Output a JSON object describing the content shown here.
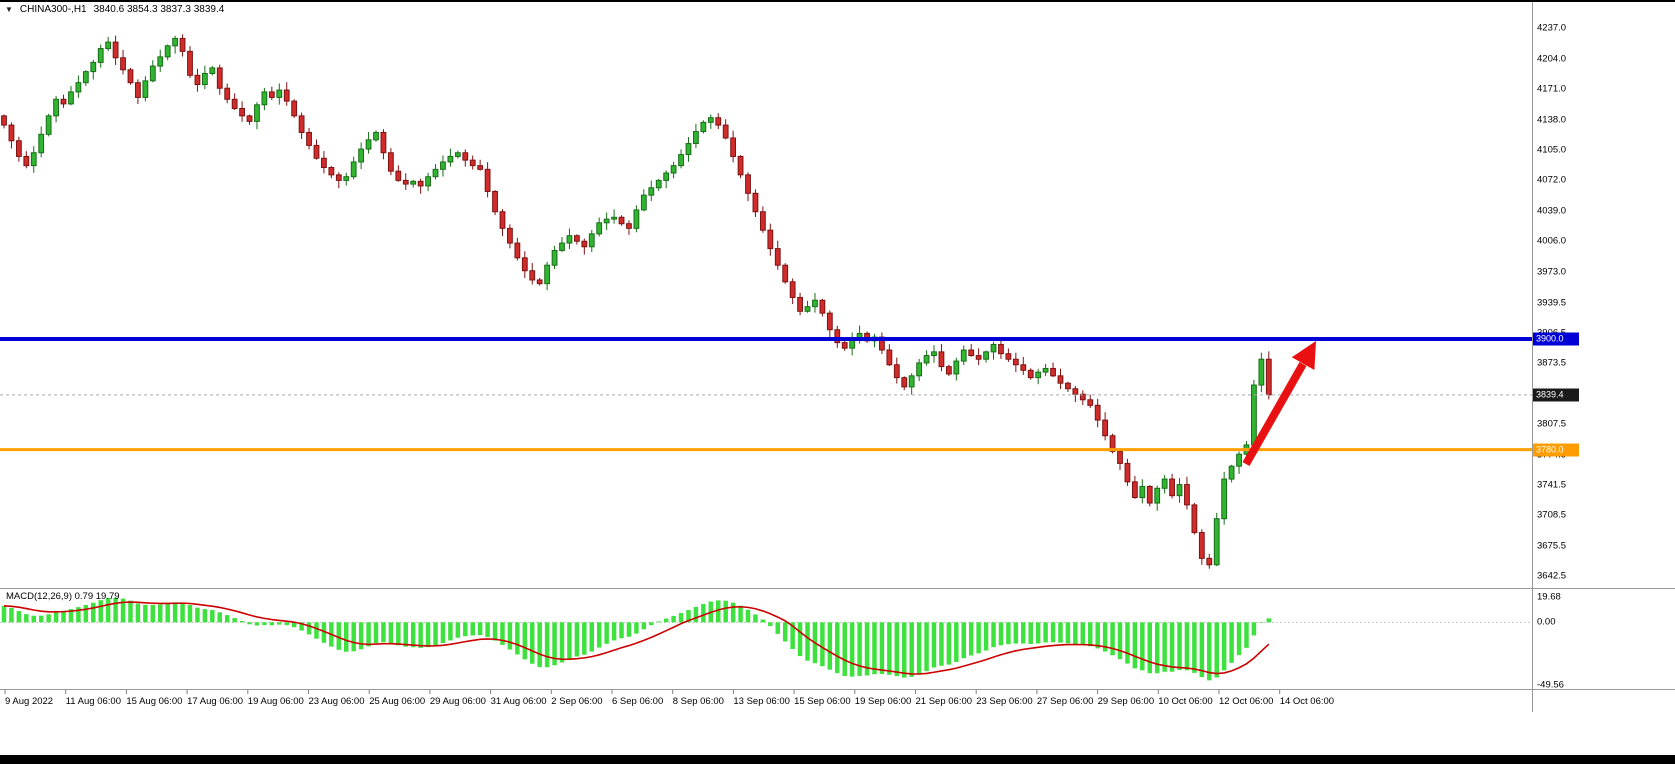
{
  "window": {
    "background": "#ffffff"
  },
  "header": {
    "dropdown_icon": "▼",
    "symbol_title": "CHINA300-,H1",
    "ohlc": "3840.6 3854.3 3837.3 3839.4"
  },
  "price_tags": {
    "blue": "3900.0",
    "black": "3839.4",
    "orange": "3780.0"
  },
  "colors": {
    "candle_up": "#31b431",
    "candle_up_stroke": "#176e17",
    "candle_down": "#d02c2c",
    "candle_down_stroke": "#7e1212",
    "macd_hist": "#3ee23e",
    "macd_signal": "#cc0000",
    "hline_blue": "#0000d6",
    "hline_orange": "#ffa000",
    "last_price_line": "#aaaaaa",
    "arrow": "#e81010"
  },
  "chart_data": {
    "type": "candlestick",
    "symbol": "CHINA300-",
    "timeframe": "H1",
    "title": "CHINA300-,H1",
    "ohlc_readout": {
      "open": 3840.6,
      "high": 3854.3,
      "low": 3837.3,
      "close": 3839.4
    },
    "price_axis_range": [
      3632,
      4246
    ],
    "price_axis_labels": [
      "4237.0",
      "4204.0",
      "4171.0",
      "4138.0",
      "4105.0",
      "4072.0",
      "4039.0",
      "4006.0",
      "3973.0",
      "3939.5",
      "3906.5",
      "3873.5",
      "3840.5",
      "3807.5",
      "3774.5",
      "3741.5",
      "3708.5",
      "3675.5",
      "3642.5"
    ],
    "time_axis_labels": [
      "9 Aug 2022",
      "11 Aug 06:00",
      "15 Aug 06:00",
      "17 Aug 06:00",
      "19 Aug 06:00",
      "23 Aug 06:00",
      "25 Aug 06:00",
      "29 Aug 06:00",
      "31 Aug 06:00",
      "2 Sep 06:00",
      "6 Sep 06:00",
      "8 Sep 06:00",
      "13 Sep 06:00",
      "15 Sep 06:00",
      "19 Sep 06:00",
      "21 Sep 06:00",
      "23 Sep 06:00",
      "27 Sep 06:00",
      "29 Sep 06:00",
      "10 Oct 06:00",
      "12 Oct 06:00",
      "14 Oct 06:00"
    ],
    "candles_close": [
      4132,
      4115,
      4098,
      4088,
      4102,
      4122,
      4142,
      4160,
      4155,
      4168,
      4178,
      4190,
      4200,
      4215,
      4222,
      4205,
      4192,
      4178,
      4162,
      4180,
      4196,
      4206,
      4218,
      4226,
      4212,
      4186,
      4176,
      4188,
      4194,
      4172,
      4160,
      4150,
      4142,
      4136,
      4154,
      4168,
      4162,
      4170,
      4158,
      4142,
      4124,
      4110,
      4096,
      4086,
      4078,
      4072,
      4076,
      4092,
      4106,
      4116,
      4124,
      4102,
      4082,
      4072,
      4068,
      4071,
      4066,
      4076,
      4084,
      4092,
      4098,
      4102,
      4094,
      4088,
      4084,
      4060,
      4038,
      4020,
      4004,
      3988,
      3974,
      3964,
      3960,
      3980,
      3996,
      4004,
      4012,
      4006,
      4000,
      4014,
      4026,
      4030,
      4032,
      4025,
      4020,
      4040,
      4056,
      4064,
      4072,
      4080,
      4088,
      4100,
      4112,
      4125,
      4135,
      4140,
      4132,
      4118,
      4098,
      4078,
      4058,
      4038,
      4018,
      3998,
      3980,
      3962,
      3945,
      3930,
      3935,
      3942,
      3928,
      3910,
      3896,
      3890,
      3900,
      3906,
      3898,
      3902,
      3888,
      3872,
      3858,
      3848,
      3860,
      3874,
      3882,
      3886,
      3870,
      3862,
      3876,
      3888,
      3882,
      3878,
      3886,
      3894,
      3884,
      3878,
      3872,
      3866,
      3858,
      3864,
      3868,
      3860,
      3852,
      3846,
      3840,
      3834,
      3828,
      3812,
      3795,
      3778,
      3765,
      3745,
      3728,
      3740,
      3722,
      3738,
      3748,
      3730,
      3742,
      3720,
      3690,
      3662,
      3655,
      3705,
      3748,
      3762,
      3775,
      3785,
      3850,
      3878,
      3839.4
    ],
    "levels": {
      "resistance_blue": 3900.0,
      "support_orange": 3780.0,
      "last_price": 3839.4
    },
    "macd": {
      "label": "MACD(12,26,9) 0.79 19.79",
      "params": [
        12,
        26,
        9
      ],
      "axis_labels": [
        "19.68",
        "0.00",
        "-49.56"
      ]
    },
    "annotation": {
      "type": "arrow-up-right",
      "description": "red arrow pointing from support level up toward the 3900.0 resistance line",
      "color": "#e81010"
    }
  }
}
